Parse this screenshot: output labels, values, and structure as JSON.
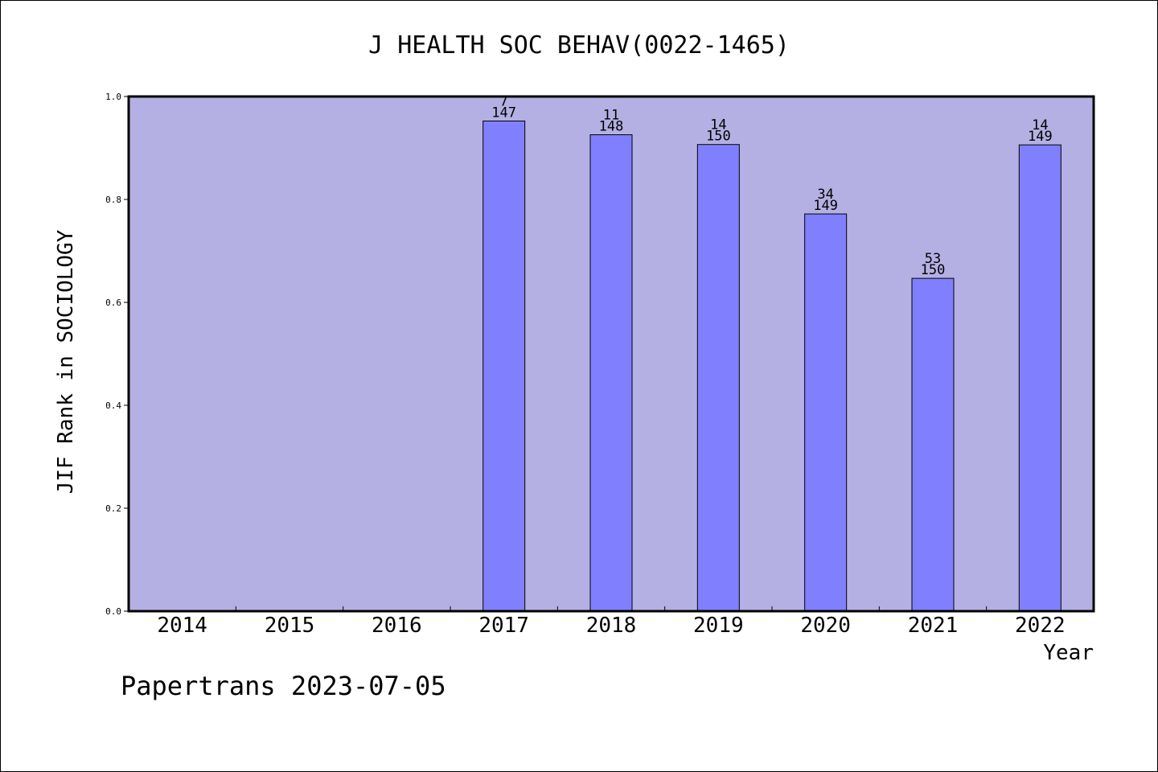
{
  "chart_data": {
    "type": "bar",
    "title": "J HEALTH SOC BEHAV(0022-1465)",
    "xlabel": "Year",
    "ylabel": "JIF Rank in SOCIOLOGY",
    "ylim": [
      0,
      1.0
    ],
    "yticks": [
      "0.0",
      "0.2",
      "0.4",
      "0.6",
      "0.8",
      "1.0"
    ],
    "categories": [
      "2014",
      "2015",
      "2016",
      "2017",
      "2018",
      "2019",
      "2020",
      "2021",
      "2022"
    ],
    "values": [
      null,
      null,
      null,
      0.9524,
      0.9257,
      0.9067,
      0.7718,
      0.6467,
      0.906
    ],
    "rank_labels": [
      null,
      null,
      null,
      {
        "rank": "7",
        "total": "147"
      },
      {
        "rank": "11",
        "total": "148"
      },
      {
        "rank": "14",
        "total": "150"
      },
      {
        "rank": "34",
        "total": "149"
      },
      {
        "rank": "53",
        "total": "150"
      },
      {
        "rank": "14",
        "total": "149"
      }
    ],
    "grid": false,
    "colors": {
      "plot_bg": "#b5b0e3",
      "bar": "#8080ff",
      "axis": "#000000"
    }
  },
  "footer": "Papertrans 2023-07-05"
}
